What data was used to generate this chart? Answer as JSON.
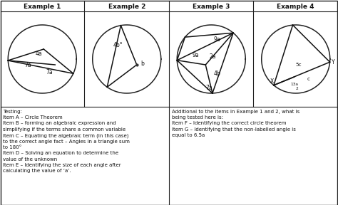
{
  "bg_color": "#ffffff",
  "title_row": [
    "Example 1",
    "Example 2",
    "Example 3",
    "Example 4"
  ],
  "text_left": "Testing:\nItem A – Circle Theorem\nItem B – forming an algebraic expression and\nsimplifying if the terms share a common variable\nItem C – Equating the algebraic term (in this case)\nto the correct angle fact – Angles in a triangle sum\nto 180°\nItem D – Solving an equation to determine the\nvalue of the unknown\nItem E – Identifying the size of each angle after\ncalculating the value of ‘a’.",
  "text_right": "Additional to the items in Example 1 and 2, what is\nbeing tested here is:\nItem F – Identifying the correct circle theorem\nItem G – Identifying that the non-labelled angle is\nequal to 6.5a"
}
